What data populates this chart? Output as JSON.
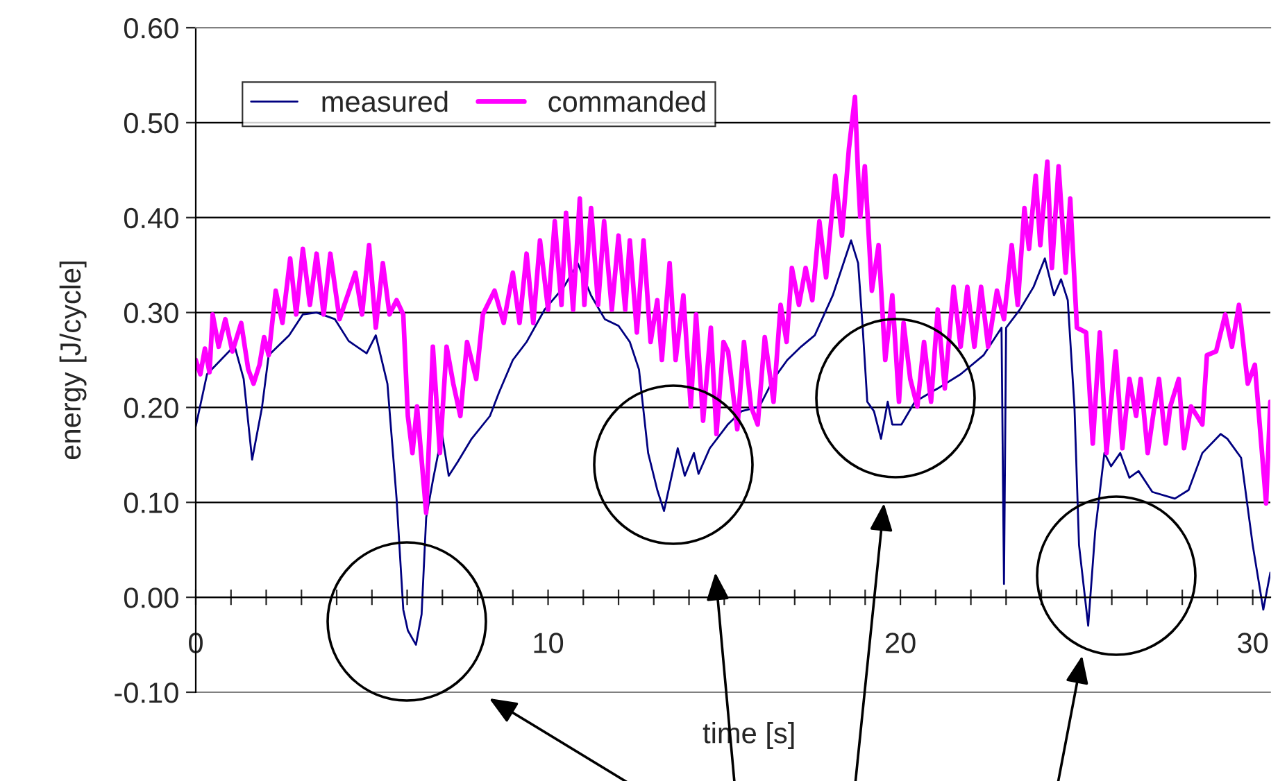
{
  "chart_data": {
    "type": "line",
    "xlabel": "time [s]",
    "ylabel": "energy [J/cycle]",
    "xlim": [
      0,
      30.5
    ],
    "ylim": [
      -0.1,
      0.6
    ],
    "xticks": [
      0,
      10,
      20,
      30
    ],
    "yticks": [
      {
        "value": -0.1,
        "label": "-0.10"
      },
      {
        "value": 0,
        "label": "0.00"
      },
      {
        "value": 0.1,
        "label": "0.10"
      },
      {
        "value": 0.2,
        "label": "0.20"
      },
      {
        "value": 0.3,
        "label": "0.30"
      },
      {
        "value": 0.4,
        "label": "0.40"
      },
      {
        "value": 0.5,
        "label": "0.50"
      },
      {
        "value": 0.6,
        "label": "0.60"
      }
    ],
    "grid": "y",
    "legend": "top left",
    "marker": "none",
    "line_style": "solid",
    "series": [
      {
        "name": "measured",
        "color": "#000080",
        "x": [
          0,
          0.32,
          0.71,
          1.1,
          1.36,
          1.6,
          1.88,
          2.07,
          2.65,
          3.04,
          3.43,
          3.95,
          4.34,
          4.85,
          5.11,
          5.44,
          5.7,
          5.89,
          6.02,
          6.25,
          6.41,
          6.54,
          6.73,
          6.99,
          7.18,
          7.44,
          7.83,
          8.35,
          8.61,
          9.0,
          9.39,
          9.9,
          10.45,
          10.84,
          11.22,
          11.61,
          12.0,
          12.32,
          12.58,
          12.84,
          13.1,
          13.29,
          13.68,
          13.88,
          14.14,
          14.27,
          14.59,
          15.1,
          15.49,
          16.0,
          16.4,
          16.79,
          17.18,
          17.57,
          18.08,
          18.6,
          18.8,
          18.93,
          19.06,
          19.25,
          19.45,
          19.64,
          19.77,
          20.03,
          20.41,
          21.06,
          21.71,
          22.36,
          22.87,
          22.94,
          23.0,
          23.39,
          23.78,
          24.1,
          24.36,
          24.56,
          24.75,
          24.94,
          25.07,
          25.33,
          25.53,
          25.79,
          25.98,
          26.24,
          26.5,
          26.76,
          27.15,
          27.79,
          28.18,
          28.57,
          29.09,
          29.28,
          29.67,
          30.0,
          30.3,
          30.5
        ],
        "values": [
          0.18,
          0.235,
          0.25,
          0.265,
          0.23,
          0.145,
          0.2,
          0.255,
          0.276,
          0.298,
          0.3,
          0.293,
          0.27,
          0.257,
          0.276,
          0.225,
          0.104,
          -0.013,
          -0.035,
          -0.05,
          -0.018,
          0.084,
          0.123,
          0.172,
          0.128,
          0.143,
          0.167,
          0.191,
          0.216,
          0.25,
          0.269,
          0.303,
          0.327,
          0.352,
          0.318,
          0.293,
          0.286,
          0.269,
          0.24,
          0.152,
          0.113,
          0.091,
          0.157,
          0.128,
          0.152,
          0.13,
          0.157,
          0.182,
          0.196,
          0.201,
          0.23,
          0.25,
          0.264,
          0.276,
          0.318,
          0.376,
          0.352,
          0.284,
          0.206,
          0.196,
          0.167,
          0.206,
          0.182,
          0.182,
          0.206,
          0.22,
          0.235,
          0.255,
          0.284,
          0.014,
          0.284,
          0.303,
          0.327,
          0.357,
          0.318,
          0.335,
          0.313,
          0.201,
          0.055,
          -0.03,
          0.07,
          0.152,
          0.138,
          0.152,
          0.126,
          0.133,
          0.111,
          0.104,
          0.113,
          0.152,
          0.172,
          0.167,
          0.147,
          0.055,
          -0.013,
          0.026
        ]
      },
      {
        "name": "commanded",
        "color": "#ff00ff",
        "x": [
          0,
          0.13,
          0.26,
          0.39,
          0.48,
          0.65,
          0.84,
          1.04,
          1.29,
          1.49,
          1.64,
          1.81,
          1.94,
          2.07,
          2.27,
          2.46,
          2.68,
          2.85,
          3.04,
          3.24,
          3.43,
          3.63,
          3.82,
          4.08,
          4.53,
          4.72,
          4.92,
          5.11,
          5.31,
          5.5,
          5.7,
          5.89,
          6.02,
          6.15,
          6.28,
          6.54,
          6.73,
          6.93,
          7.12,
          7.31,
          7.51,
          7.7,
          7.96,
          8.15,
          8.48,
          8.74,
          9.0,
          9.19,
          9.39,
          9.58,
          9.77,
          10.0,
          10.19,
          10.38,
          10.51,
          10.71,
          10.9,
          11.03,
          11.22,
          11.42,
          11.59,
          11.81,
          12.0,
          12.19,
          12.32,
          12.52,
          12.71,
          12.91,
          13.1,
          13.23,
          13.45,
          13.62,
          13.84,
          14.05,
          14.2,
          14.4,
          14.62,
          14.78,
          14.98,
          15.11,
          15.37,
          15.56,
          15.76,
          15.95,
          16.15,
          16.4,
          16.6,
          16.77,
          16.92,
          17.12,
          17.31,
          17.5,
          17.7,
          17.89,
          18.15,
          18.34,
          18.54,
          18.71,
          18.8,
          18.86,
          18.99,
          19.19,
          19.38,
          19.57,
          19.77,
          19.96,
          20.09,
          20.28,
          20.48,
          20.67,
          20.87,
          21.06,
          21.26,
          21.51,
          21.71,
          21.9,
          22.1,
          22.29,
          22.49,
          22.74,
          22.94,
          23.16,
          23.33,
          23.52,
          23.65,
          23.84,
          23.97,
          24.17,
          24.3,
          24.49,
          24.69,
          24.82,
          25.01,
          25.27,
          25.46,
          25.66,
          25.85,
          26.11,
          26.3,
          26.5,
          26.69,
          26.82,
          27.02,
          27.21,
          27.34,
          27.53,
          27.66,
          27.9,
          28.05,
          28.25,
          28.57,
          28.7,
          28.96,
          29.22,
          29.41,
          29.61,
          29.86,
          30.06,
          30.38,
          30.5
        ],
        "values": [
          0.25,
          0.235,
          0.262,
          0.237,
          0.298,
          0.264,
          0.293,
          0.259,
          0.289,
          0.24,
          0.225,
          0.245,
          0.274,
          0.255,
          0.323,
          0.289,
          0.357,
          0.298,
          0.367,
          0.308,
          0.362,
          0.298,
          0.362,
          0.293,
          0.342,
          0.298,
          0.371,
          0.284,
          0.352,
          0.298,
          0.313,
          0.298,
          0.191,
          0.152,
          0.201,
          0.089,
          0.264,
          0.152,
          0.264,
          0.225,
          0.191,
          0.269,
          0.23,
          0.298,
          0.323,
          0.289,
          0.342,
          0.289,
          0.362,
          0.289,
          0.376,
          0.303,
          0.396,
          0.308,
          0.405,
          0.303,
          0.42,
          0.308,
          0.41,
          0.308,
          0.396,
          0.303,
          0.381,
          0.303,
          0.376,
          0.279,
          0.376,
          0.269,
          0.313,
          0.25,
          0.352,
          0.25,
          0.318,
          0.201,
          0.298,
          0.186,
          0.284,
          0.172,
          0.269,
          0.259,
          0.177,
          0.269,
          0.201,
          0.182,
          0.274,
          0.206,
          0.308,
          0.269,
          0.347,
          0.308,
          0.347,
          0.313,
          0.396,
          0.337,
          0.444,
          0.381,
          0.473,
          0.527,
          0.444,
          0.401,
          0.454,
          0.323,
          0.371,
          0.25,
          0.318,
          0.206,
          0.289,
          0.23,
          0.201,
          0.269,
          0.206,
          0.303,
          0.22,
          0.327,
          0.264,
          0.327,
          0.264,
          0.327,
          0.264,
          0.323,
          0.293,
          0.371,
          0.308,
          0.41,
          0.367,
          0.444,
          0.371,
          0.459,
          0.347,
          0.454,
          0.342,
          0.42,
          0.284,
          0.279,
          0.162,
          0.279,
          0.152,
          0.259,
          0.157,
          0.23,
          0.191,
          0.23,
          0.152,
          0.201,
          0.23,
          0.162,
          0.201,
          0.23,
          0.157,
          0.201,
          0.182,
          0.255,
          0.259,
          0.298,
          0.264,
          0.308,
          0.225,
          0.245,
          0.099,
          0.206
        ]
      }
    ]
  }
}
